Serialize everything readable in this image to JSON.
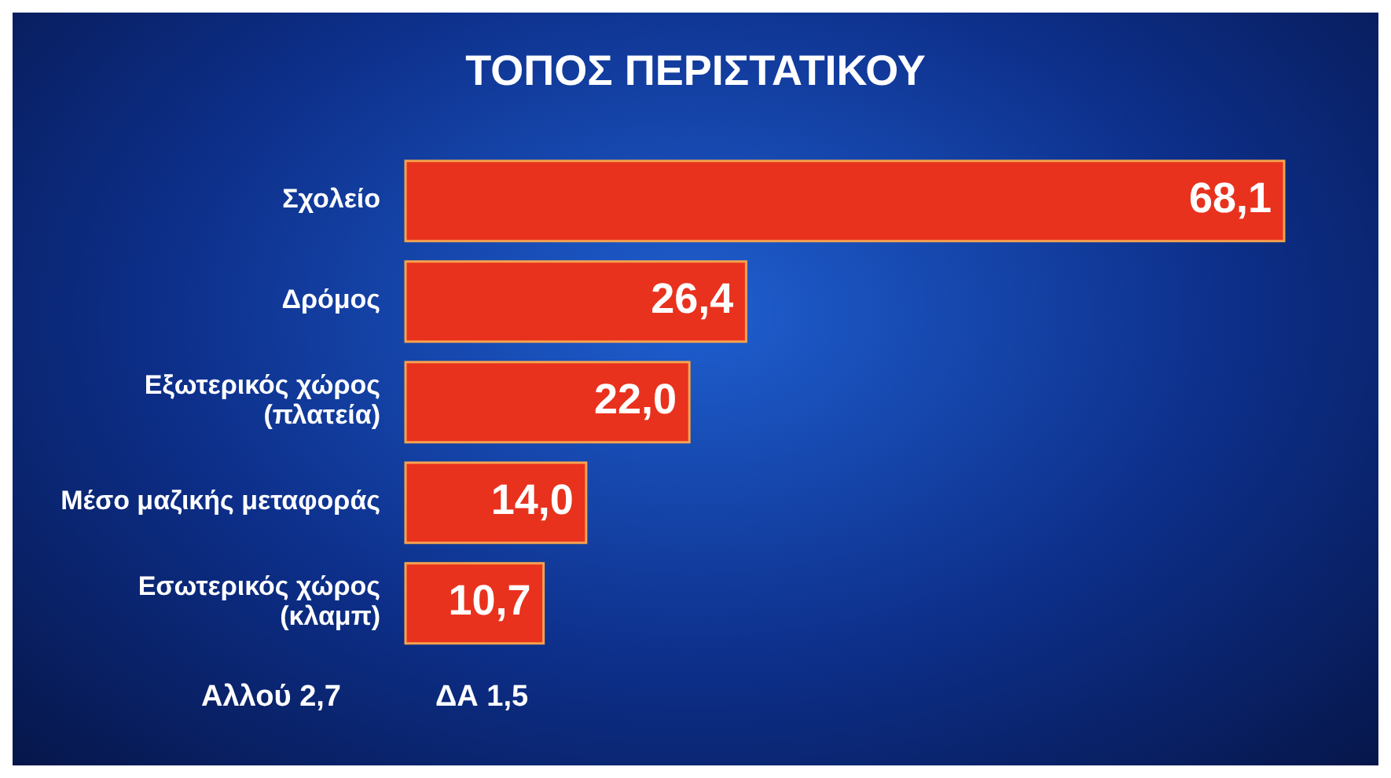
{
  "chart_data": {
    "type": "bar",
    "orientation": "horizontal",
    "title": "ΤΟΠΟΣ ΠΕΡΙΣΤΑΤΙΚΟΥ",
    "categories": [
      "Σχολείο",
      "Δρόμος",
      "Εξωτερικός χώρος (πλατεία)",
      "Μέσο μαζικής μεταφοράς",
      "Εσωτερικός χώρος (κλαμπ)"
    ],
    "values": [
      68.1,
      26.4,
      22.0,
      14.0,
      10.7
    ],
    "value_labels": [
      "68,1",
      "26,4",
      "22,0",
      "14,0",
      "10,7"
    ],
    "color": "#e8321e",
    "annotations": [
      "Αλλού 2,7",
      "ΔΑ 1,5"
    ]
  }
}
